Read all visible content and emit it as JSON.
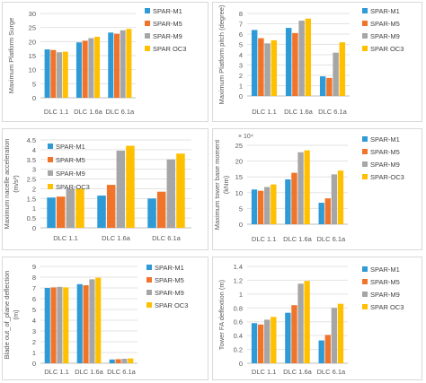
{
  "series_colors": [
    "#2e9ad6",
    "#f0742a",
    "#a6a6a6",
    "#ffc000"
  ],
  "chart_data": [
    {
      "type": "bar",
      "ylabel": "Maximum Platform Surge",
      "categories": [
        "DLC 1.1",
        "DLC 1.6a",
        "DLC 6.1a"
      ],
      "ylim": [
        0,
        30
      ],
      "yticks": [
        0,
        5,
        10,
        15,
        20,
        25,
        30
      ],
      "ytick_labels": [
        "0",
        "5",
        "10",
        "15",
        "20",
        "25",
        "30"
      ],
      "exponent_label": "",
      "grid": true,
      "legend": "right",
      "series": [
        {
          "name": "SPAR-M1",
          "values": [
            17.2,
            19.7,
            23.2
          ]
        },
        {
          "name": "SPAR-M5",
          "values": [
            17.0,
            20.3,
            22.8
          ]
        },
        {
          "name": "SPAR-M9",
          "values": [
            16.2,
            21.2,
            24.0
          ]
        },
        {
          "name": "SPAR OC3",
          "values": [
            16.4,
            21.7,
            24.5
          ]
        }
      ]
    },
    {
      "type": "bar",
      "ylabel": "Maximum Platform pitch (degree)",
      "categories": [
        "DLC 1.1",
        "DLC 1.6a",
        "DLC 6.1a"
      ],
      "ylim": [
        0,
        8
      ],
      "yticks": [
        0,
        1,
        2,
        3,
        4,
        5,
        6,
        7,
        8
      ],
      "ytick_labels": [
        "0",
        "1",
        "2",
        "3",
        "4",
        "5",
        "6",
        "7",
        "8"
      ],
      "exponent_label": "",
      "grid": true,
      "legend": "right",
      "series": [
        {
          "name": "SPAR-M1",
          "values": [
            6.4,
            6.6,
            1.9
          ]
        },
        {
          "name": "SPAR-M5",
          "values": [
            5.6,
            6.1,
            1.75
          ]
        },
        {
          "name": "SPAR-M9",
          "values": [
            5.1,
            7.3,
            4.2
          ]
        },
        {
          "name": "SPAR OC3",
          "values": [
            5.4,
            7.5,
            5.2
          ]
        }
      ]
    },
    {
      "type": "bar",
      "ylabel": "Maximum nacelle acceleration (m/s²)",
      "categories": [
        "DLC 1.1",
        "DLC 1.6a",
        "DLC 6.1a"
      ],
      "ylim": [
        0,
        4.5
      ],
      "yticks": [
        0,
        0.5,
        1,
        1.5,
        2,
        2.5,
        3,
        3.5,
        4,
        4.5
      ],
      "ytick_labels": [
        "0",
        "0.5",
        "1",
        "1.5",
        "2",
        "2.5",
        "3",
        "3.5",
        "4",
        "4.5"
      ],
      "exponent_label": "",
      "grid": true,
      "legend": "top-left",
      "series": [
        {
          "name": "SPAR-M1",
          "values": [
            1.55,
            1.65,
            1.5
          ]
        },
        {
          "name": "SPAR-M5",
          "values": [
            1.6,
            2.2,
            1.85
          ]
        },
        {
          "name": "SPAR-M9",
          "values": [
            2.0,
            3.95,
            3.5
          ]
        },
        {
          "name": "SPAR-OC3",
          "values": [
            2.0,
            4.2,
            3.8
          ]
        }
      ]
    },
    {
      "type": "bar",
      "ylabel": "Maximum tower base moment (kNm)",
      "categories": [
        "DLC 1.1",
        "DLC 1.6a",
        "DLC 6.1a"
      ],
      "ylim": [
        0,
        25
      ],
      "yticks": [
        0,
        5,
        10,
        15,
        20,
        25
      ],
      "ytick_labels": [
        "0",
        "5",
        "10",
        "15",
        "20",
        "25"
      ],
      "exponent_label": "× 10⁴",
      "grid": true,
      "legend": "right",
      "series": [
        {
          "name": "SPAR-M1",
          "values": [
            11.0,
            14.2,
            6.8
          ]
        },
        {
          "name": "SPAR-M5",
          "values": [
            10.6,
            16.3,
            8.2
          ]
        },
        {
          "name": "SPAR-M9",
          "values": [
            11.8,
            22.8,
            15.8
          ]
        },
        {
          "name": "SPAR-OC3",
          "values": [
            12.6,
            23.4,
            17.0
          ]
        }
      ]
    },
    {
      "type": "bar",
      "ylabel": "Blade out_of_plane deflection (m)",
      "categories": [
        "DLC 1.1",
        "DLC 1.6a",
        "DLC 6.1a"
      ],
      "ylim": [
        0,
        9
      ],
      "yticks": [
        0,
        1,
        2,
        3,
        4,
        5,
        6,
        7,
        8,
        9
      ],
      "ytick_labels": [
        "0",
        "1",
        "2",
        "3",
        "4",
        "5",
        "6",
        "7",
        "8",
        "9"
      ],
      "exponent_label": "",
      "grid": true,
      "legend": "right",
      "series": [
        {
          "name": "SPAR-M1",
          "values": [
            7.0,
            7.35,
            0.35
          ]
        },
        {
          "name": "SPAR-M5",
          "values": [
            7.05,
            7.25,
            0.38
          ]
        },
        {
          "name": "SPAR-M9",
          "values": [
            7.1,
            7.8,
            0.42
          ]
        },
        {
          "name": "SPAR OC3",
          "values": [
            7.05,
            7.95,
            0.45
          ]
        }
      ]
    },
    {
      "type": "bar",
      "ylabel": "Tower FA deflextion (m)",
      "categories": [
        "DLC 1.1",
        "DLC 1.6a",
        "DLC 6.1a"
      ],
      "ylim": [
        0,
        1.4
      ],
      "yticks": [
        0,
        0.2,
        0.4,
        0.6,
        0.8,
        1,
        1.2,
        1.4
      ],
      "ytick_labels": [
        "0",
        "0.2",
        "0.4",
        "0.6",
        "0.8",
        "1",
        "1.2",
        "1.4"
      ],
      "exponent_label": "",
      "grid": true,
      "legend": "right",
      "series": [
        {
          "name": "SPAR-M1",
          "values": [
            0.58,
            0.73,
            0.33
          ]
        },
        {
          "name": "SPAR-M5",
          "values": [
            0.56,
            0.84,
            0.41
          ]
        },
        {
          "name": "SPAR-M9",
          "values": [
            0.63,
            1.15,
            0.8
          ]
        },
        {
          "name": "SPAR OC3",
          "values": [
            0.67,
            1.19,
            0.86
          ]
        }
      ]
    }
  ]
}
